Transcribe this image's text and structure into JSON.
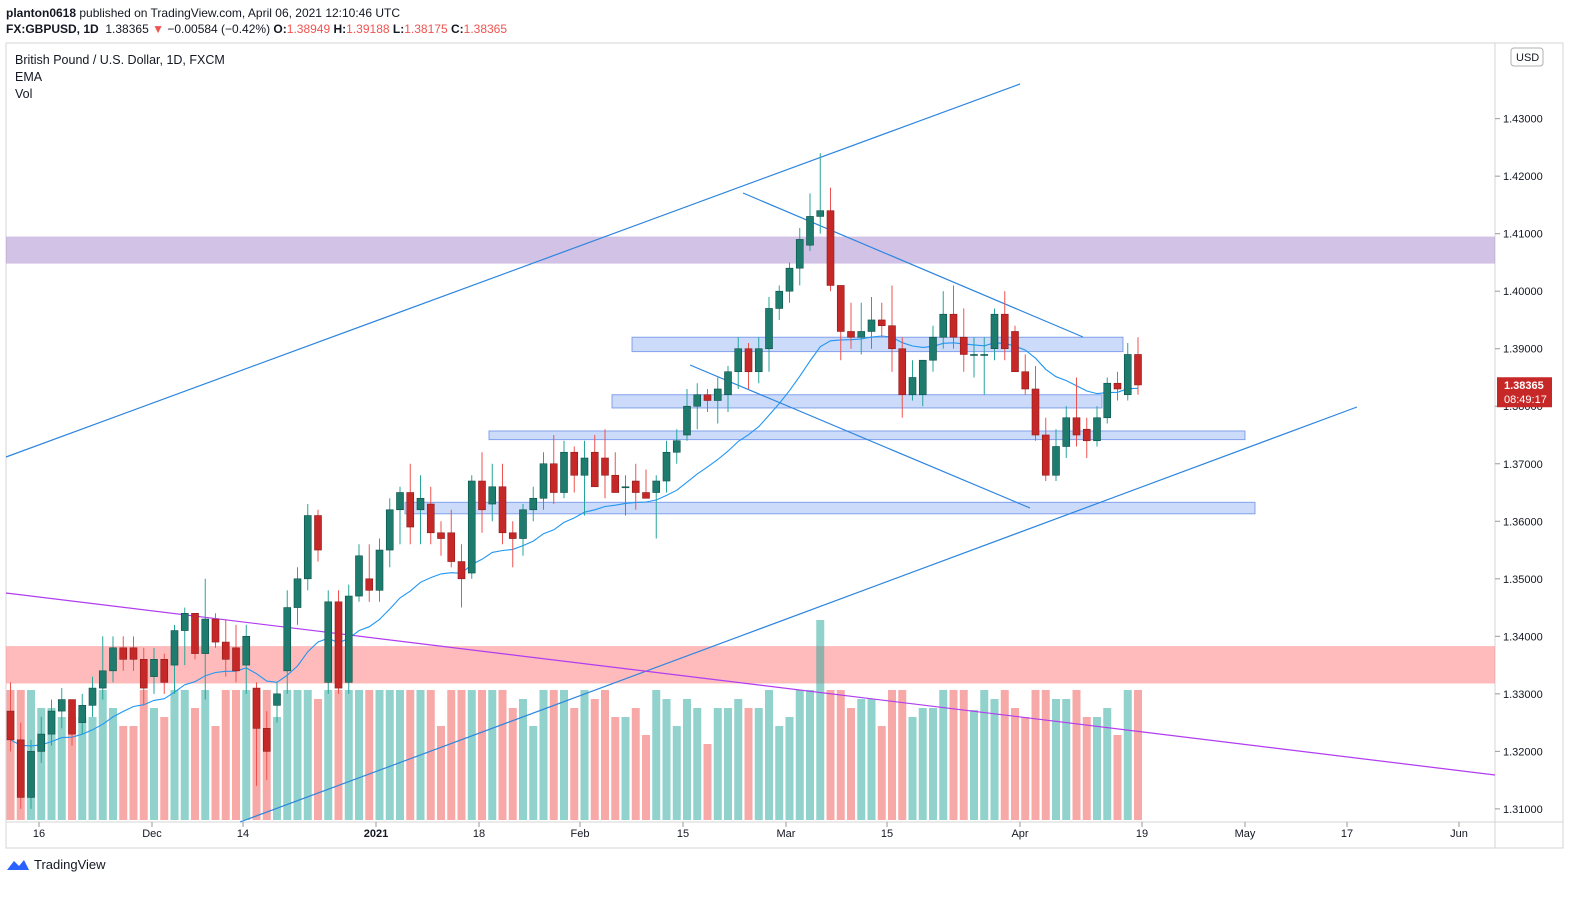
{
  "header": {
    "user": "planton0618",
    "published": "published on TradingView.com, April 06, 2021 12:10:46 UTC",
    "symbol": "FX:GBPUSD, 1D",
    "last": "1.38365",
    "change": "−0.00584 (−0.42%)",
    "o_label": "O:",
    "o": "1.38949",
    "h_label": "H:",
    "h": "1.39188",
    "l_label": "L:",
    "l": "1.38175",
    "c_label": "C:",
    "c": "1.38365"
  },
  "legend": {
    "title": "British Pound / U.S. Dollar, 1D, FXCM",
    "ema": "EMA",
    "vol": "Vol"
  },
  "footer": {
    "brand": "TradingView"
  },
  "colors": {
    "up": "#26a69a",
    "down": "#ef5350",
    "upBody": "#1e7c6f",
    "downBody": "#c62828",
    "line": "#2e86de",
    "purpleLine": "#b13cf0"
  },
  "chart_data": {
    "type": "candlestick",
    "symbol": "GBPUSD",
    "currency": "USD",
    "ylim": [
      1.305,
      1.4425
    ],
    "y_ticks": [
      1.31,
      1.32,
      1.33,
      1.34,
      1.35,
      1.36,
      1.37,
      1.38,
      1.39,
      1.4,
      1.41,
      1.42,
      1.43
    ],
    "x_ticks": [
      "16",
      "Dec",
      "14",
      "2021",
      "18",
      "Feb",
      "15",
      "Mar",
      "15",
      "Apr",
      "19",
      "May",
      "17",
      "Jun"
    ],
    "last_price": "1.38365",
    "countdown": "08:49:17",
    "candles": [
      [
        1.327,
        1.332,
        1.32,
        1.322
      ],
      [
        1.322,
        1.325,
        1.31,
        1.312
      ],
      [
        1.312,
        1.322,
        1.31,
        1.32
      ],
      [
        1.32,
        1.326,
        1.318,
        1.323
      ],
      [
        1.323,
        1.329,
        1.321,
        1.327
      ],
      [
        1.327,
        1.331,
        1.324,
        1.329
      ],
      [
        1.329,
        1.328,
        1.321,
        1.323
      ],
      [
        1.325,
        1.33,
        1.323,
        1.328
      ],
      [
        1.328,
        1.333,
        1.326,
        1.331
      ],
      [
        1.331,
        1.34,
        1.329,
        1.334
      ],
      [
        1.334,
        1.34,
        1.332,
        1.338
      ],
      [
        1.338,
        1.34,
        1.334,
        1.336
      ],
      [
        1.338,
        1.34,
        1.334,
        1.336
      ],
      [
        1.336,
        1.338,
        1.328,
        1.331
      ],
      [
        1.333,
        1.338,
        1.33,
        1.336
      ],
      [
        1.336,
        1.337,
        1.33,
        1.332
      ],
      [
        1.335,
        1.342,
        1.33,
        1.341
      ],
      [
        1.341,
        1.345,
        1.335,
        1.344
      ],
      [
        1.344,
        1.344,
        1.336,
        1.337
      ],
      [
        1.337,
        1.35,
        1.329,
        1.343
      ],
      [
        1.343,
        1.344,
        1.338,
        1.339
      ],
      [
        1.339,
        1.343,
        1.333,
        1.336
      ],
      [
        1.338,
        1.342,
        1.332,
        1.334
      ],
      [
        1.335,
        1.342,
        1.33,
        1.34
      ],
      [
        1.331,
        1.332,
        1.314,
        1.324
      ],
      [
        1.324,
        1.327,
        1.315,
        1.32
      ],
      [
        1.328,
        1.332,
        1.325,
        1.33
      ],
      [
        1.334,
        1.348,
        1.33,
        1.345
      ],
      [
        1.345,
        1.352,
        1.342,
        1.35
      ],
      [
        1.35,
        1.363,
        1.348,
        1.361
      ],
      [
        1.361,
        1.362,
        1.353,
        1.355
      ],
      [
        1.332,
        1.348,
        1.33,
        1.346
      ],
      [
        1.346,
        1.348,
        1.33,
        1.331
      ],
      [
        1.332,
        1.349,
        1.33,
        1.347
      ],
      [
        1.347,
        1.356,
        1.346,
        1.354
      ],
      [
        1.35,
        1.356,
        1.346,
        1.348
      ],
      [
        1.348,
        1.357,
        1.346,
        1.355
      ],
      [
        1.355,
        1.364,
        1.352,
        1.362
      ],
      [
        1.362,
        1.366,
        1.356,
        1.365
      ],
      [
        1.365,
        1.37,
        1.356,
        1.359
      ],
      [
        1.362,
        1.368,
        1.356,
        1.364
      ],
      [
        1.363,
        1.366,
        1.356,
        1.358
      ],
      [
        1.358,
        1.36,
        1.354,
        1.357
      ],
      [
        1.358,
        1.362,
        1.352,
        1.353
      ],
      [
        1.353,
        1.356,
        1.345,
        1.35
      ],
      [
        1.351,
        1.368,
        1.35,
        1.367
      ],
      [
        1.367,
        1.372,
        1.358,
        1.362
      ],
      [
        1.363,
        1.37,
        1.36,
        1.366
      ],
      [
        1.366,
        1.37,
        1.356,
        1.358
      ],
      [
        1.358,
        1.36,
        1.352,
        1.357
      ],
      [
        1.357,
        1.363,
        1.354,
        1.362
      ],
      [
        1.362,
        1.366,
        1.36,
        1.364
      ],
      [
        1.364,
        1.372,
        1.362,
        1.37
      ],
      [
        1.37,
        1.375,
        1.363,
        1.365
      ],
      [
        1.365,
        1.374,
        1.364,
        1.372
      ],
      [
        1.372,
        1.373,
        1.365,
        1.368
      ],
      [
        1.368,
        1.374,
        1.361,
        1.371
      ],
      [
        1.372,
        1.375,
        1.366,
        1.366
      ],
      [
        1.371,
        1.376,
        1.364,
        1.368
      ],
      [
        1.368,
        1.372,
        1.365,
        1.365
      ],
      [
        1.366,
        1.368,
        1.361,
        1.366
      ],
      [
        1.367,
        1.37,
        1.362,
        1.365
      ],
      [
        1.365,
        1.369,
        1.364,
        1.364
      ],
      [
        1.365,
        1.368,
        1.357,
        1.367
      ],
      [
        1.367,
        1.374,
        1.365,
        1.372
      ],
      [
        1.372,
        1.376,
        1.37,
        1.374
      ],
      [
        1.375,
        1.383,
        1.374,
        1.38
      ],
      [
        1.38,
        1.384,
        1.376,
        1.382
      ],
      [
        1.382,
        1.383,
        1.379,
        1.381
      ],
      [
        1.381,
        1.385,
        1.377,
        1.383
      ],
      [
        1.382,
        1.387,
        1.379,
        1.386
      ],
      [
        1.386,
        1.392,
        1.383,
        1.39
      ],
      [
        1.39,
        1.391,
        1.383,
        1.386
      ],
      [
        1.386,
        1.392,
        1.384,
        1.39
      ],
      [
        1.39,
        1.399,
        1.386,
        1.397
      ],
      [
        1.397,
        1.401,
        1.395,
        1.4
      ],
      [
        1.4,
        1.405,
        1.398,
        1.404
      ],
      [
        1.404,
        1.411,
        1.401,
        1.409
      ],
      [
        1.408,
        1.417,
        1.407,
        1.413
      ],
      [
        1.413,
        1.424,
        1.41,
        1.414
      ],
      [
        1.414,
        1.418,
        1.4,
        1.401
      ],
      [
        1.401,
        1.401,
        1.388,
        1.393
      ],
      [
        1.393,
        1.398,
        1.39,
        1.392
      ],
      [
        1.392,
        1.398,
        1.389,
        1.393
      ],
      [
        1.393,
        1.399,
        1.39,
        1.395
      ],
      [
        1.395,
        1.398,
        1.392,
        1.394
      ],
      [
        1.394,
        1.401,
        1.386,
        1.39
      ],
      [
        1.39,
        1.392,
        1.378,
        1.382
      ],
      [
        1.382,
        1.388,
        1.381,
        1.385
      ],
      [
        1.382,
        1.388,
        1.38,
        1.388
      ],
      [
        1.388,
        1.394,
        1.386,
        1.392
      ],
      [
        1.392,
        1.4,
        1.39,
        1.396
      ],
      [
        1.396,
        1.401,
        1.39,
        1.392
      ],
      [
        1.392,
        1.397,
        1.386,
        1.389
      ],
      [
        1.389,
        1.392,
        1.385,
        1.389
      ],
      [
        1.389,
        1.392,
        1.382,
        1.389
      ],
      [
        1.39,
        1.397,
        1.388,
        1.396
      ],
      [
        1.396,
        1.4,
        1.388,
        1.39
      ],
      [
        1.393,
        1.394,
        1.386,
        1.386
      ],
      [
        1.386,
        1.389,
        1.382,
        1.383
      ],
      [
        1.383,
        1.387,
        1.374,
        1.375
      ],
      [
        1.375,
        1.378,
        1.367,
        1.368
      ],
      [
        1.368,
        1.376,
        1.367,
        1.373
      ],
      [
        1.373,
        1.38,
        1.371,
        1.378
      ],
      [
        1.378,
        1.385,
        1.373,
        1.375
      ],
      [
        1.376,
        1.378,
        1.371,
        1.374
      ],
      [
        1.374,
        1.38,
        1.373,
        1.378
      ],
      [
        1.378,
        1.385,
        1.377,
        1.384
      ],
      [
        1.384,
        1.386,
        1.381,
        1.383
      ],
      [
        1.382,
        1.391,
        1.381,
        1.389
      ],
      [
        1.389,
        1.392,
        1.382,
        1.3837
      ]
    ],
    "ema_note": "EMA line overlay",
    "zones": [
      {
        "color": "purple",
        "from": 1.4048,
        "to": 1.4095
      },
      {
        "color": "red",
        "from": 1.3318,
        "to": 1.3383
      },
      {
        "color": "blue",
        "from": 1.3895,
        "to": 1.392
      },
      {
        "color": "blue",
        "from": 1.3797,
        "to": 1.382
      },
      {
        "color": "blue",
        "from": 1.3742,
        "to": 1.3757
      },
      {
        "color": "blue",
        "from": 1.3613,
        "to": 1.3633
      }
    ]
  }
}
